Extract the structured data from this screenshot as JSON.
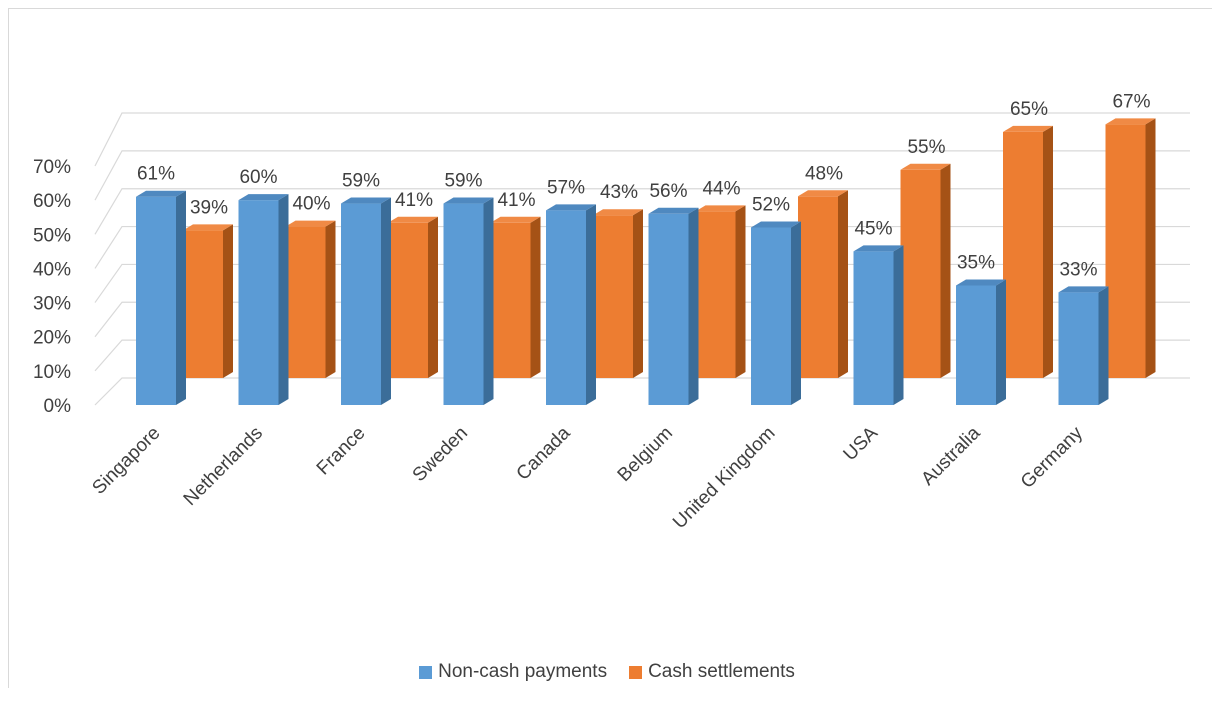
{
  "chart_data": {
    "type": "bar",
    "title": "",
    "xlabel": "",
    "ylabel": "",
    "ylim": [
      0,
      70
    ],
    "yticks": [
      "0%",
      "10%",
      "20%",
      "30%",
      "40%",
      "50%",
      "60%",
      "70%"
    ],
    "grid": true,
    "legend_position": "bottom",
    "categories": [
      "Singapore",
      "Netherlands",
      "France",
      "Sweden",
      "Canada",
      "Belgium",
      "United Kingdom",
      "USA",
      "Australia",
      "Germany"
    ],
    "series": [
      {
        "name": "Non-cash payments",
        "color": "#5b9bd5",
        "values": [
          61,
          60,
          59,
          59,
          57,
          56,
          52,
          45,
          35,
          33
        ],
        "labels": [
          "61%",
          "60%",
          "59%",
          "59%",
          "57%",
          "56%",
          "52%",
          "45%",
          "35%",
          "33%"
        ]
      },
      {
        "name": "Cash settlements",
        "color": "#ed7d31",
        "values": [
          39,
          40,
          41,
          41,
          43,
          44,
          48,
          55,
          65,
          67
        ],
        "labels": [
          "39%",
          "40%",
          "41%",
          "41%",
          "43%",
          "44%",
          "48%",
          "55%",
          "65%",
          "67%"
        ]
      }
    ]
  }
}
